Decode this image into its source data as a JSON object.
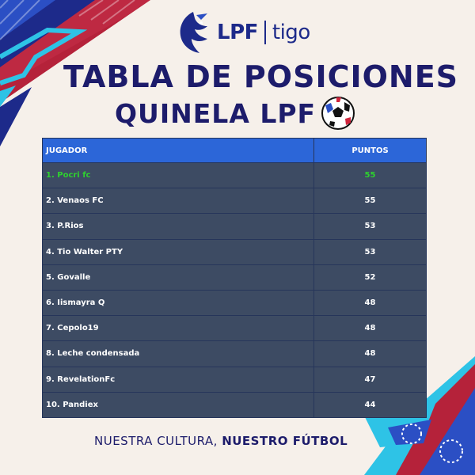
{
  "logo": {
    "brand": "LPF",
    "sponsor": "tigo"
  },
  "title": {
    "main": "TABLA DE POSICIONES",
    "sub": "QUINELA LPF"
  },
  "table": {
    "headers": {
      "player": "JUGADOR",
      "points": "PUNTOS"
    },
    "rows": [
      {
        "player": "1. Pocri fc",
        "points": "55"
      },
      {
        "player": "2. Venaos FC",
        "points": "55"
      },
      {
        "player": "3. P.Rios",
        "points": "53"
      },
      {
        "player": "4. Tio Walter PTY",
        "points": "53"
      },
      {
        "player": "5. Govalle",
        "points": "52"
      },
      {
        "player": "6. Iismayra Q",
        "points": "48"
      },
      {
        "player": "7. Cepolo19",
        "points": "48"
      },
      {
        "player": "8. Leche condensada",
        "points": "48"
      },
      {
        "player": "9. RevelationFc",
        "points": "47"
      },
      {
        "player": "10. Pandiex",
        "points": "44"
      }
    ]
  },
  "footer": {
    "normal": "NUESTRA CULTURA, ",
    "bold": "NUESTRO FÚTBOL"
  },
  "colors": {
    "navy": "#1d1c6b",
    "header_blue": "#2c66d8",
    "row_bg": "#3d4b63",
    "leader_green": "#2ed12e",
    "accent_red": "#b5223a",
    "accent_cyan": "#2ec3e6"
  }
}
